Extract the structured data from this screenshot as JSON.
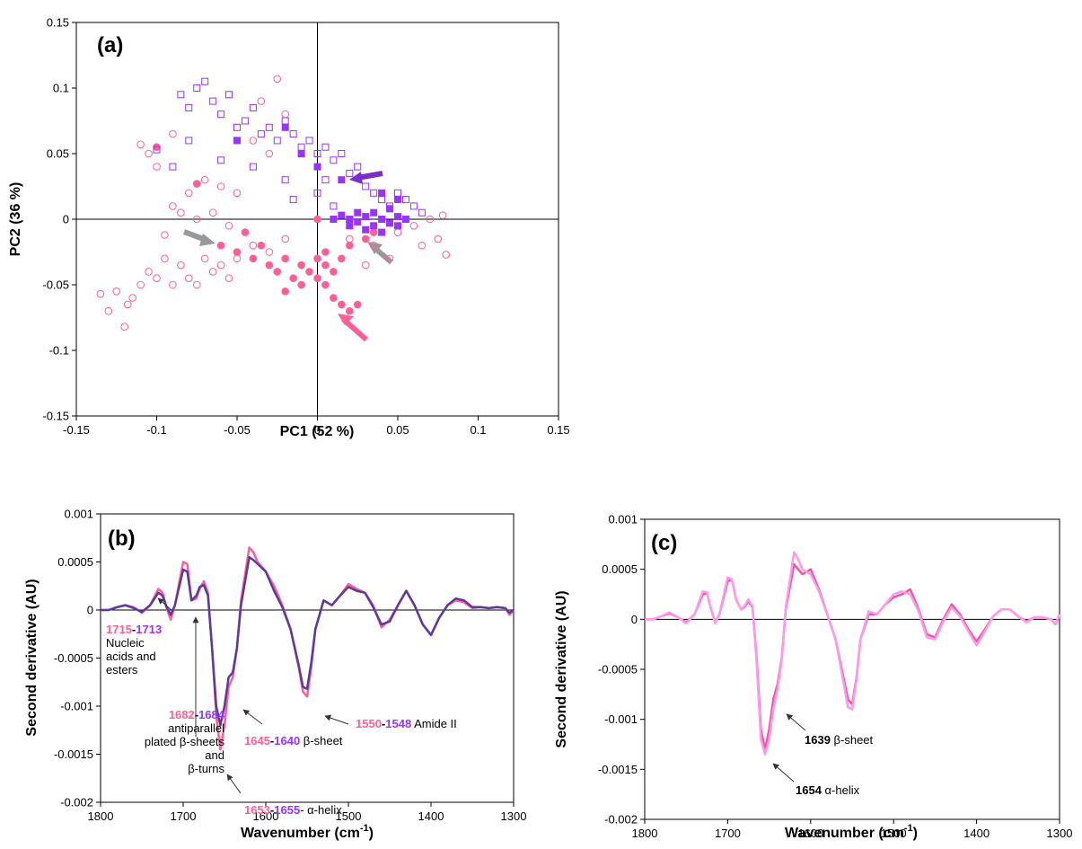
{
  "chart_data": [
    {
      "type": "scatter",
      "title": "(a)",
      "xlabel": "PC1 (52 %)",
      "ylabel": "PC2 (36 %)",
      "xlim": [
        -0.15,
        0.15
      ],
      "ylim": [
        -0.15,
        0.15
      ],
      "xticks": [
        -0.15,
        -0.1,
        -0.05,
        0,
        0.05,
        0.1,
        0.15
      ],
      "yticks": [
        -0.15,
        -0.1,
        -0.05,
        0,
        0.05,
        0.1,
        0.15
      ],
      "series": [
        {
          "color": "#ff5f96",
          "marker": "circle",
          "filled": false,
          "x": [
            -0.135,
            -0.13,
            -0.125,
            -0.12,
            -0.118,
            -0.115,
            -0.11,
            -0.105,
            -0.1,
            -0.095,
            -0.09,
            -0.085,
            -0.08,
            -0.075,
            -0.07,
            -0.065,
            -0.06,
            -0.055,
            -0.05,
            -0.04,
            -0.03,
            -0.02,
            -0.11,
            -0.105,
            -0.1,
            -0.09,
            -0.08,
            -0.07,
            -0.06,
            -0.05,
            -0.04,
            -0.03,
            -0.025,
            -0.02,
            -0.035,
            -0.09,
            -0.075,
            -0.065,
            0.02,
            0.035,
            0.05,
            0.06,
            0.065,
            0.07,
            0.075,
            0.08,
            0.078,
            0.045,
            0.03,
            -0.095,
            -0.055,
            -0.085
          ],
          "values": [
            -0.057,
            -0.07,
            -0.055,
            -0.082,
            -0.065,
            -0.06,
            -0.05,
            -0.04,
            -0.045,
            -0.03,
            -0.05,
            -0.035,
            -0.045,
            -0.05,
            -0.03,
            -0.04,
            -0.035,
            -0.045,
            -0.03,
            -0.02,
            -0.025,
            -0.015,
            0.057,
            0.05,
            0.04,
            0.01,
            0.02,
            0.03,
            0.025,
            0.02,
            0.06,
            0.05,
            0.107,
            0.08,
            0.09,
            0.065,
            0,
            0.005,
            -0.015,
            -0.02,
            -0.01,
            -0.005,
            -0.02,
            0,
            -0.015,
            -0.027,
            0.003,
            -0.03,
            -0.035,
            -0.012,
            -0.005,
            0.005
          ]
        },
        {
          "color": "#ff5f96",
          "marker": "circle",
          "filled": true,
          "x": [
            -0.06,
            -0.05,
            -0.04,
            -0.035,
            -0.03,
            -0.025,
            -0.02,
            -0.015,
            -0.01,
            -0.005,
            0,
            0.005,
            0,
            -0.01,
            0.005,
            0.01,
            0.015,
            0.02,
            0.01,
            0.015,
            0.02,
            0.025,
            0.03,
            -0.045,
            -0.1,
            -0.075,
            0,
            0.035,
            -0.02,
            0.005
          ],
          "values": [
            -0.02,
            -0.025,
            -0.03,
            -0.02,
            -0.035,
            -0.04,
            -0.03,
            -0.045,
            -0.035,
            -0.04,
            -0.045,
            -0.035,
            -0.03,
            -0.05,
            -0.05,
            -0.04,
            -0.03,
            -0.02,
            -0.06,
            -0.065,
            -0.07,
            -0.065,
            -0.015,
            -0.01,
            0.055,
            0.027,
            0,
            -0.01,
            -0.055,
            -0.025
          ]
        },
        {
          "color": "#9933ff",
          "marker": "square",
          "filled": false,
          "x": [
            -0.085,
            -0.08,
            -0.075,
            -0.07,
            -0.065,
            -0.06,
            -0.055,
            -0.05,
            -0.045,
            -0.04,
            -0.035,
            -0.03,
            -0.025,
            -0.02,
            -0.015,
            -0.01,
            -0.005,
            0,
            0.005,
            0.01,
            0.015,
            0.02,
            0.025,
            0.03,
            0.035,
            0.04,
            0.045,
            0.05,
            0.055,
            0.06,
            0.065,
            -0.1,
            -0.09,
            -0.08,
            -0.06,
            -0.04,
            -0.02,
            0,
            0.01,
            0.02,
            -0.015,
            0.005
          ],
          "values": [
            0.095,
            0.085,
            0.1,
            0.105,
            0.09,
            0.08,
            0.095,
            0.07,
            0.075,
            0.085,
            0.065,
            0.07,
            0.06,
            0.075,
            0.065,
            0.055,
            0.06,
            0.05,
            0.055,
            0.045,
            0.05,
            0.035,
            0.04,
            0.025,
            0.02,
            0.015,
            0.01,
            0.02,
            0.015,
            0.01,
            0.005,
            0.053,
            0.04,
            0.06,
            0.045,
            0.04,
            0.03,
            0.02,
            0.01,
            0,
            0.015,
            0.03
          ]
        },
        {
          "color": "#9933ff",
          "marker": "square",
          "filled": true,
          "x": [
            0.01,
            0.015,
            0.02,
            0.025,
            0.03,
            0.035,
            0.04,
            0.045,
            0.05,
            0.03,
            0.04,
            0.035,
            0.045,
            0.025,
            0.05,
            0.02,
            0.055,
            0.015,
            0,
            -0.01,
            -0.02,
            0.04,
            0.05,
            -0.05
          ],
          "values": [
            0,
            0.003,
            0,
            -0.002,
            0.002,
            -0.005,
            0,
            -0.003,
            0.002,
            -0.008,
            -0.01,
            0.005,
            0.008,
            0.005,
            -0.005,
            -0.005,
            0,
            0.03,
            0.04,
            0.05,
            0.07,
            0.02,
            0.015,
            0.06
          ]
        }
      ]
    },
    {
      "type": "line",
      "title": "(b)",
      "xlabel": {
        "text": "Wavenumber (cm",
        "sup": "-1",
        "tail": ")"
      },
      "ylabel": "Second derivative (AU)",
      "xlim": [
        1800,
        1300
      ],
      "ylim": [
        -0.002,
        0.001
      ],
      "xticks": [
        1800,
        1700,
        1600,
        1500,
        1400,
        1300
      ],
      "yticks": [
        0.001,
        0.0005,
        0,
        -0.0005,
        -0.001,
        -0.0015,
        -0.002
      ],
      "x": [
        1800,
        1790,
        1780,
        1770,
        1760,
        1750,
        1740,
        1730,
        1725,
        1720,
        1715,
        1710,
        1700,
        1695,
        1690,
        1684,
        1680,
        1675,
        1670,
        1665,
        1660,
        1655,
        1650,
        1645,
        1640,
        1635,
        1630,
        1620,
        1615,
        1610,
        1600,
        1590,
        1580,
        1570,
        1560,
        1555,
        1550,
        1545,
        1540,
        1530,
        1520,
        1510,
        1500,
        1490,
        1480,
        1470,
        1460,
        1450,
        1440,
        1430,
        1420,
        1410,
        1400,
        1390,
        1380,
        1370,
        1360,
        1350,
        1340,
        1330,
        1320,
        1310,
        1305,
        1300
      ],
      "series": [
        {
          "color": "#ff5f96",
          "values": [
            0,
            0,
            3e-05,
            5e-05,
            3e-05,
            -3e-05,
            5e-05,
            0.00022,
            0.00018,
            2e-05,
            -0.0001,
            5e-05,
            0.0005,
            0.00048,
            0.0001,
            0.00012,
            0.00022,
            0.0003,
            0.00018,
            -0.0004,
            -0.0011,
            -0.00145,
            -0.0012,
            -0.0008,
            -0.0007,
            -0.0004,
            0.0001,
            0.00065,
            0.0006,
            0.0005,
            0.0004,
            0.00025,
            5e-05,
            -0.0002,
            -0.0006,
            -0.00085,
            -0.0009,
            -0.0006,
            -0.0002,
            0.0001,
            5e-05,
            0.00015,
            0.00027,
            0.00022,
            0.00018,
            5e-05,
            -0.00018,
            -0.0001,
            5e-05,
            0.0002,
            5e-05,
            -0.00015,
            -0.00026,
            -8e-05,
            5e-05,
            0.0001,
            8e-05,
            2e-05,
            3e-05,
            2e-05,
            3e-05,
            2e-05,
            -5e-05,
            0
          ]
        },
        {
          "color": "#5b3a9e",
          "values": [
            0,
            0,
            3e-05,
            5e-05,
            2e-05,
            -2e-05,
            5e-05,
            0.00018,
            0.00015,
            3e-05,
            -5e-05,
            5e-05,
            0.00042,
            0.0004,
            0.0001,
            0.00015,
            0.00024,
            0.00026,
            0.00015,
            -0.0004,
            -0.001,
            -0.0012,
            -0.001,
            -0.0007,
            -0.00065,
            -0.0004,
            5e-05,
            0.00055,
            0.00052,
            0.00048,
            0.0004,
            0.0002,
            3e-05,
            -0.0002,
            -0.00058,
            -0.0008,
            -0.00082,
            -0.00055,
            -0.0002,
            0.0001,
            5e-05,
            0.00015,
            0.00024,
            0.0002,
            0.00018,
            3e-05,
            -0.00015,
            -0.00012,
            5e-05,
            0.0002,
            5e-05,
            -0.00015,
            -0.00026,
            -8e-05,
            5e-05,
            0.00012,
            0.0001,
            3e-05,
            3e-05,
            2e-05,
            3e-05,
            2e-05,
            -3e-05,
            0
          ]
        }
      ],
      "annotations": [
        {
          "lines": [
            [
              {
                "text": "1715",
                "color": "#ff5f96",
                "bold": true
              },
              {
                "text": "-",
                "bold": true
              },
              {
                "text": "1713",
                "color": "#9933ff",
                "bold": true
              }
            ],
            [
              {
                "text": "Nucleic"
              }
            ],
            [
              {
                "text": "acids and"
              }
            ],
            [
              {
                "text": "esters"
              }
            ]
          ]
        },
        {
          "lines": [
            [
              {
                "text": "1682",
                "color": "#ff5f96",
                "bold": true
              },
              {
                "text": "-",
                "bold": true
              },
              {
                "text": "1684",
                "color": "#9933ff",
                "bold": true
              }
            ],
            [
              {
                "text": "antiparallel"
              }
            ],
            [
              {
                "text": "plated β-sheets"
              }
            ],
            [
              {
                "text": "and"
              }
            ],
            [
              {
                "text": "β-turns"
              }
            ]
          ]
        },
        {
          "lines": [
            [
              {
                "text": "1653",
                "color": "#ff5f96",
                "bold": true
              },
              {
                "text": "-",
                "bold": true
              },
              {
                "text": "1655",
                "color": "#9933ff",
                "bold": true
              },
              {
                "text": "- α-helix"
              }
            ]
          ]
        },
        {
          "lines": [
            [
              {
                "text": "1645",
                "color": "#ff5f96",
                "bold": true
              },
              {
                "text": "-",
                "bold": true
              },
              {
                "text": "1640",
                "color": "#9933ff",
                "bold": true
              },
              {
                "text": " β-sheet"
              }
            ]
          ]
        },
        {
          "lines": [
            [
              {
                "text": "1550",
                "color": "#ff5f96",
                "bold": true
              },
              {
                "text": "-",
                "bold": true
              },
              {
                "text": "1548",
                "color": "#9933ff",
                "bold": true
              },
              {
                "text": " Amide II"
              }
            ]
          ]
        }
      ]
    },
    {
      "type": "line",
      "title": "(c)",
      "xlabel": {
        "text": "Wavenumber (cm",
        "sup": "-1",
        "tail": ")"
      },
      "ylabel": "Second derivative (AU)",
      "xlim": [
        1800,
        1300
      ],
      "ylim": [
        -0.002,
        0.001
      ],
      "xticks": [
        1800,
        1700,
        1600,
        1500,
        1400,
        1300
      ],
      "yticks": [
        0.001,
        0.0005,
        0,
        -0.0005,
        -0.001,
        -0.0015,
        -0.002
      ],
      "x": [
        1800,
        1790,
        1780,
        1770,
        1760,
        1750,
        1740,
        1730,
        1725,
        1720,
        1715,
        1710,
        1700,
        1695,
        1690,
        1684,
        1680,
        1675,
        1670,
        1665,
        1660,
        1655,
        1650,
        1645,
        1640,
        1635,
        1630,
        1620,
        1615,
        1610,
        1600,
        1590,
        1580,
        1570,
        1560,
        1555,
        1550,
        1545,
        1540,
        1530,
        1520,
        1510,
        1500,
        1490,
        1480,
        1470,
        1460,
        1450,
        1440,
        1430,
        1420,
        1410,
        1400,
        1390,
        1380,
        1370,
        1360,
        1350,
        1340,
        1330,
        1320,
        1310,
        1305,
        1300
      ],
      "series": [
        {
          "color": "#f2559e",
          "values": [
            0,
            0,
            3e-05,
            6e-05,
            2e-05,
            -3e-05,
            5e-05,
            0.00025,
            0.00026,
            0.0001,
            -3e-05,
            5e-05,
            0.00038,
            0.0004,
            0.0002,
            0.0001,
            0.00012,
            0.00018,
            0.00012,
            -0.0004,
            -0.0011,
            -0.0013,
            -0.0011,
            -0.0008,
            -0.00065,
            -0.0004,
            0.0001,
            0.00055,
            0.0005,
            0.00045,
            0.0005,
            0.0003,
            5e-05,
            -0.0002,
            -0.0006,
            -0.0008,
            -0.00085,
            -0.0006,
            -0.0002,
            5e-05,
            5e-05,
            0.00015,
            0.00022,
            0.00025,
            0.0003,
            0.0001,
            -0.00015,
            -0.00018,
            0,
            0.00015,
            5e-05,
            -0.0001,
            -0.00022,
            -0.0001,
            3e-05,
            0.0001,
            0.0001,
            3e-05,
            -2e-05,
            2e-05,
            2e-05,
            0,
            -5e-05,
            3e-05
          ]
        },
        {
          "color": "#ff99ee",
          "values": [
            0,
            0,
            3e-05,
            7e-05,
            2e-05,
            -4e-05,
            5e-05,
            0.00028,
            0.00027,
            0.0001,
            -4e-05,
            5e-05,
            0.00042,
            0.0004,
            0.0002,
            0.0001,
            0.00013,
            0.0002,
            0.00013,
            -0.00045,
            -0.0012,
            -0.00135,
            -0.0012,
            -0.0009,
            -0.0007,
            -0.00042,
            0.00012,
            0.00067,
            0.0006,
            0.0005,
            0.00045,
            0.00028,
            5e-05,
            -0.0002,
            -0.00065,
            -0.00088,
            -0.0009,
            -0.00062,
            -0.0002,
            8e-05,
            5e-05,
            0.00015,
            0.00025,
            0.00028,
            0.00025,
            8e-05,
            -0.00018,
            -0.0002,
            -2e-05,
            0.00012,
            3e-05,
            -0.00012,
            -0.00026,
            -0.00012,
            3e-05,
            0.0001,
            0.0001,
            3e-05,
            -3e-05,
            2e-05,
            2e-05,
            0,
            -5e-05,
            5e-05
          ]
        }
      ],
      "annotations": [
        {
          "lines": [
            [
              {
                "text": "1639",
                "bold": true
              },
              {
                "text": " β-sheet"
              }
            ]
          ]
        },
        {
          "lines": [
            [
              {
                "text": "1654",
                "bold": true
              },
              {
                "text": " α-helix"
              }
            ]
          ]
        }
      ]
    }
  ]
}
